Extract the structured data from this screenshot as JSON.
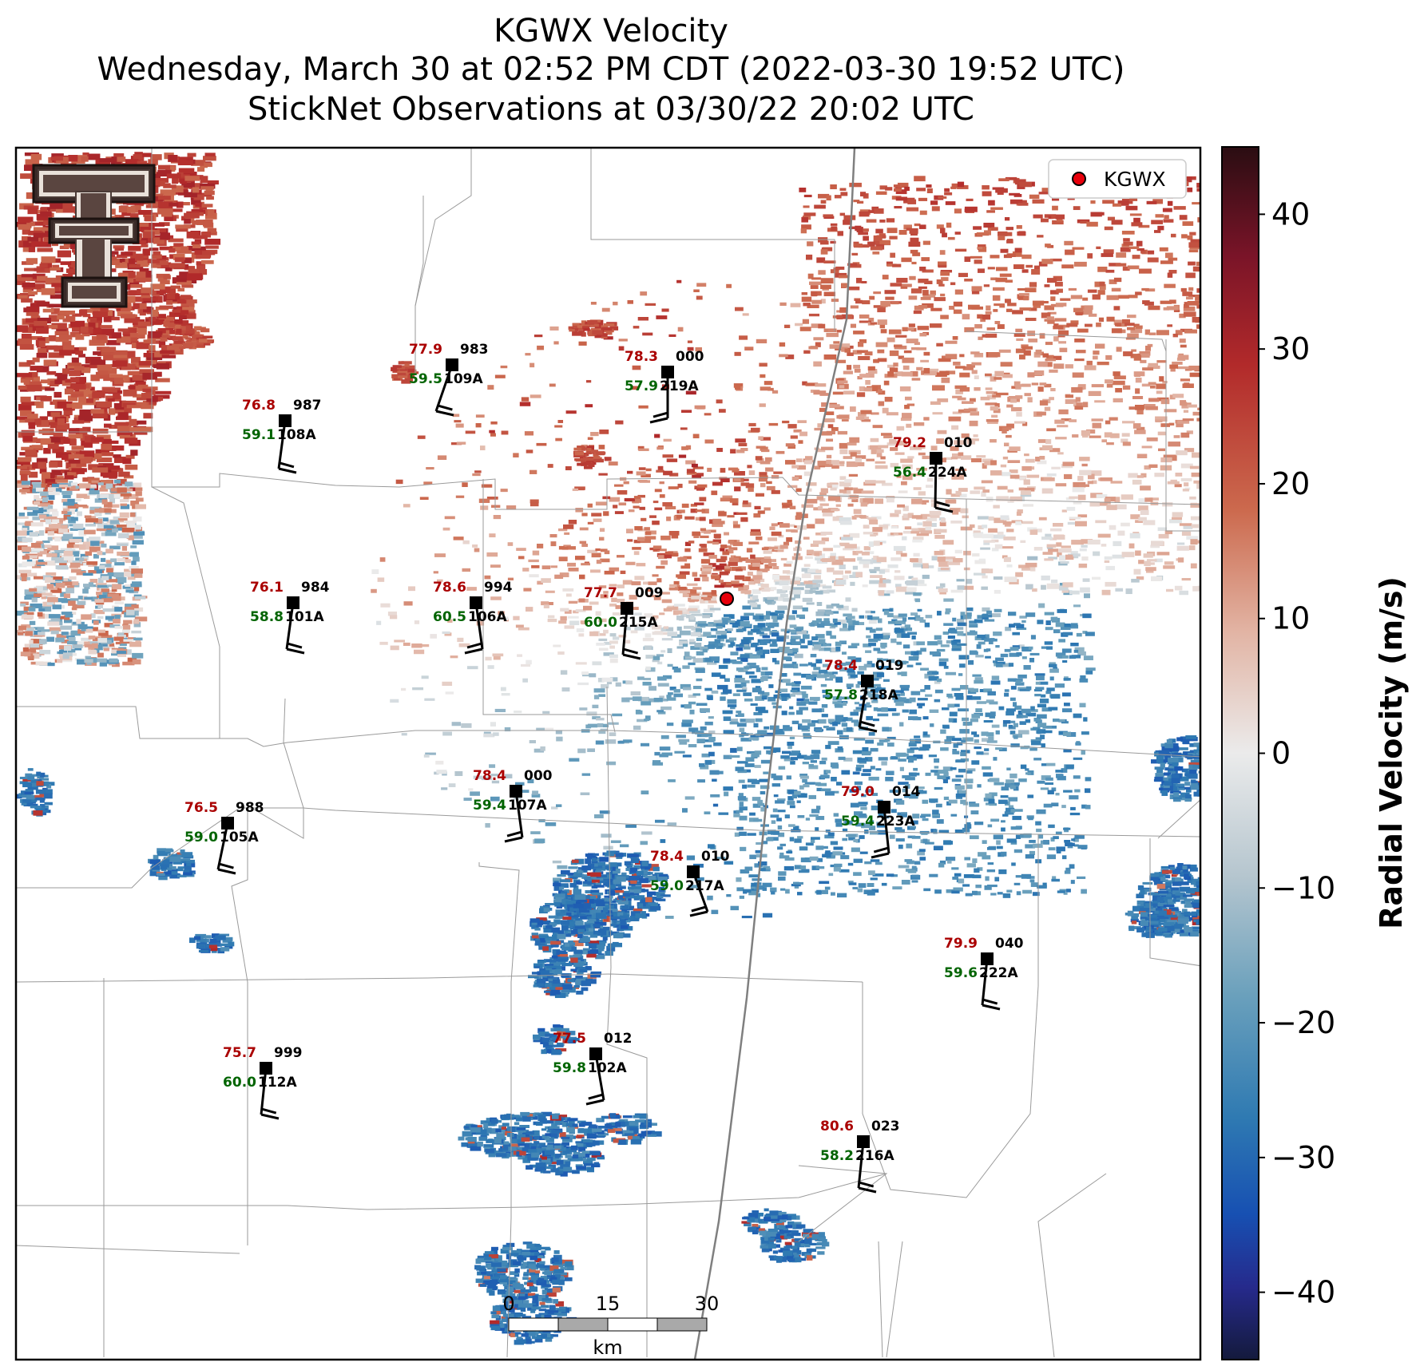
{
  "title": {
    "line1": "KGWX Velocity",
    "line2": "Wednesday, March 30 at 02:52 PM CDT (2022-03-30 19:52 UTC)",
    "line3": "StickNet Observations at 03/30/22 20:02 UTC"
  },
  "legend": {
    "label": "KGWX",
    "marker_color": "#e8000b"
  },
  "radar": {
    "name": "KGWX"
  },
  "colorbar": {
    "label": "Radial Velocity (m/s)",
    "range": [
      -45,
      45
    ],
    "ticks": [
      "40",
      "30",
      "20",
      "10",
      "0",
      "−10",
      "−20",
      "−30",
      "−40"
    ],
    "tick_values": [
      40,
      30,
      20,
      10,
      0,
      -10,
      -20,
      -30,
      -40
    ],
    "colors": [
      "#2a0d12",
      "#7a1428",
      "#b22a2a",
      "#cc6a4e",
      "#e2b4a4",
      "#ebebeb",
      "#b6c6cf",
      "#6aa0bc",
      "#2f7ab2",
      "#1750b2",
      "#262a8c",
      "#141a3c"
    ]
  },
  "scale_bar": {
    "labels": [
      "0",
      "15",
      "30"
    ],
    "unit": "km"
  },
  "colors": {
    "temp": "#aa0000",
    "dew": "#006400",
    "station": "#000000"
  },
  "stations": [
    {
      "temp": "76.8",
      "press": "987",
      "dew": "59.1",
      "id": "108A"
    },
    {
      "temp": "77.9",
      "press": "983",
      "dew": "59.5",
      "id": "109A"
    },
    {
      "temp": "78.3",
      "press": "000",
      "dew": "57.9",
      "id": "219A"
    },
    {
      "temp": "79.2",
      "press": "010",
      "dew": "56.4",
      "id": "224A"
    },
    {
      "temp": "76.1",
      "press": "984",
      "dew": "58.8",
      "id": "101A"
    },
    {
      "temp": "78.6",
      "press": "994",
      "dew": "60.5",
      "id": "106A"
    },
    {
      "temp": "77.7",
      "press": "009",
      "dew": "60.0",
      "id": "215A"
    },
    {
      "temp": "78.4",
      "press": "019",
      "dew": "57.8",
      "id": "218A"
    },
    {
      "temp": "78.4",
      "press": "000",
      "dew": "59.4",
      "id": "107A"
    },
    {
      "temp": "79.0",
      "press": "014",
      "dew": "59.4",
      "id": "223A"
    },
    {
      "temp": "76.5",
      "press": "988",
      "dew": "59.0",
      "id": "105A"
    },
    {
      "temp": "78.4",
      "press": "010",
      "dew": "59.0",
      "id": "217A"
    },
    {
      "temp": "79.9",
      "press": "040",
      "dew": "59.6",
      "id": "222A"
    },
    {
      "temp": "77.5",
      "press": "012",
      "dew": "59.8",
      "id": "102A"
    },
    {
      "temp": "75.7",
      "press": "999",
      "dew": "60.0",
      "id": "112A"
    },
    {
      "temp": "80.6",
      "press": "023",
      "dew": "58.2",
      "id": "216A"
    }
  ]
}
